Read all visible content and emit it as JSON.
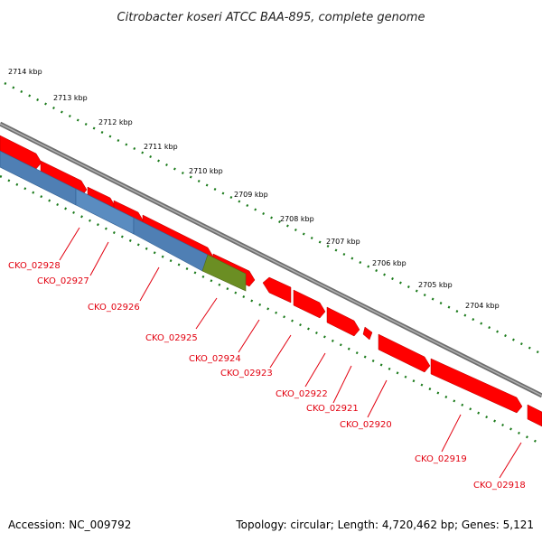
{
  "title": "Citrobacter koseri ATCC BAA-895, complete genome",
  "accession_text": "Accession: NC_009792",
  "summary_text": "Topology: circular; Length: 4,720,462 bp; Genes: 5,121",
  "ruler_labels": [
    "2714 kbp",
    "2713 kbp",
    "2712 kbp",
    "2711 kbp",
    "2710 kbp",
    "2709 kbp",
    "2708 kbp",
    "2707 kbp",
    "2706 kbp",
    "2705 kbp",
    "2704 kbp"
  ],
  "gene_labels": [
    "CKO_02928",
    "CKO_02927",
    "CKO_02926",
    "CKO_02925",
    "CKO_02924",
    "CKO_02923",
    "CKO_02922",
    "CKO_02921",
    "CKO_02920",
    "CKO_02919",
    "CKO_02918"
  ],
  "colors": {
    "backbone": "#888888",
    "forward_feature": "#ff0000",
    "reverse_feature_blue": "#4f7fb4",
    "reverse_feature_green": "#6b8e23",
    "tick_green": "#1a7a1a",
    "label_red": "#e2000f"
  }
}
